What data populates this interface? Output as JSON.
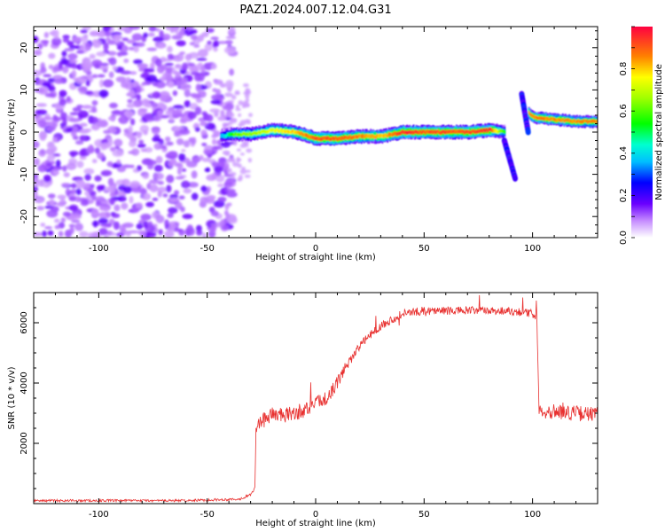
{
  "figure": {
    "title": "PAZ1.2024.007.12.04.G31"
  },
  "chart_data": [
    {
      "type": "heatmap",
      "xlabel": "Height of straight line (km)",
      "ylabel": "Frequency (Hz)",
      "xlim": [
        -130,
        130
      ],
      "ylim": [
        -25,
        25
      ],
      "x_ticks": [
        -100,
        -50,
        0,
        50,
        100
      ],
      "y_ticks": [
        -20,
        -10,
        0,
        10,
        20
      ],
      "colorbar": {
        "label": "Normalized spectral amplitude",
        "range": [
          0,
          1
        ],
        "ticks": [
          0.0,
          0.2,
          0.4,
          0.6,
          0.8
        ]
      },
      "noise_region_x": [
        -130,
        -38
      ],
      "ridge": {
        "x": [
          -44,
          -38,
          -30,
          -20,
          -10,
          0,
          10,
          20,
          30,
          40,
          50,
          60,
          70,
          80,
          87
        ],
        "y": [
          -1,
          -0.5,
          -0.5,
          0.5,
          0,
          -1.5,
          -1.5,
          -1,
          -1,
          0,
          0,
          0,
          0,
          0.5,
          0
        ],
        "amplitude": [
          0.35,
          0.6,
          0.65,
          0.75,
          0.8,
          0.9,
          0.9,
          0.85,
          0.8,
          0.95,
          0.9,
          0.9,
          0.9,
          0.95,
          0.5
        ]
      },
      "ridge_segments": [
        {
          "x": [
            87,
            90,
            92
          ],
          "y": [
            -2,
            -6,
            -11
          ],
          "amplitude": 0.25
        },
        {
          "x": [
            95,
            96,
            98
          ],
          "y": [
            9,
            6,
            0
          ],
          "amplitude": 0.25
        },
        {
          "x": [
            98,
            100,
            110,
            120,
            130
          ],
          "y": [
            4.5,
            3.5,
            3,
            2.5,
            2.5
          ],
          "amplitude": 0.85
        }
      ]
    },
    {
      "type": "line",
      "xlabel": "Height of straight line (km)",
      "ylabel": "SNR (10 * v/v)",
      "xlim": [
        -130,
        130
      ],
      "ylim": [
        0,
        7000
      ],
      "x_ticks": [
        -100,
        -50,
        0,
        50,
        100
      ],
      "y_ticks": [
        2000,
        4000,
        6000
      ],
      "color": "#e8302f",
      "series": [
        {
          "x": [
            -130,
            -100,
            -60,
            -35,
            -30,
            -28,
            -27.5,
            -25,
            -20,
            -15,
            -10,
            -5,
            0,
            5,
            10,
            15,
            20,
            25,
            30,
            40,
            50,
            60,
            70,
            80,
            90,
            95,
            100,
            102,
            103,
            110,
            120,
            130
          ],
          "values": [
            100,
            100,
            100,
            150,
            300,
            500,
            2600,
            2700,
            3000,
            2900,
            3000,
            3100,
            3300,
            3500,
            4000,
            4700,
            5200,
            5600,
            5900,
            6300,
            6400,
            6400,
            6400,
            6400,
            6400,
            6350,
            6300,
            6200,
            3100,
            3050,
            3000,
            2950
          ]
        }
      ]
    }
  ]
}
